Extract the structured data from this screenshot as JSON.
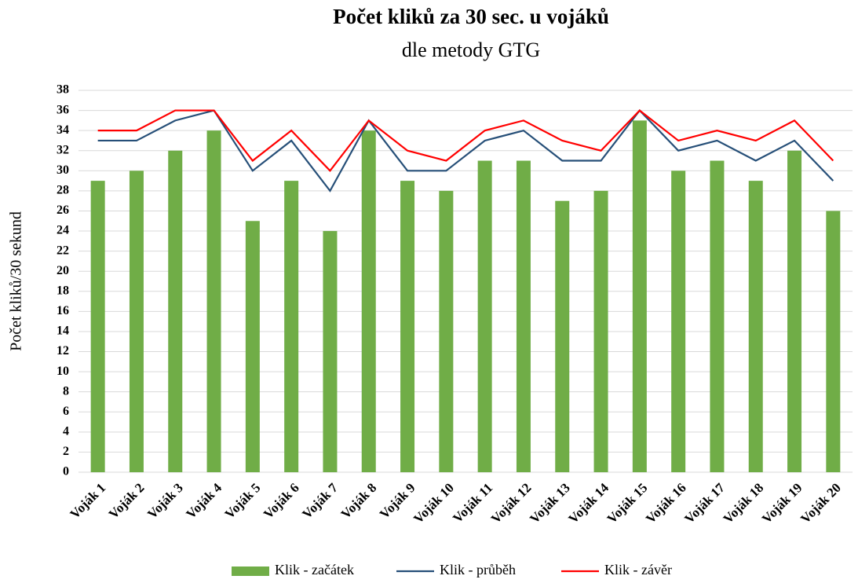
{
  "chart_data": {
    "type": "bar",
    "title": "Počet kliků za 30 sec. u vojáků",
    "subtitle": "dle metody GTG",
    "y_label": "Počet kliků/30 sekund",
    "categories": [
      "Voják 1",
      "Voják 2",
      "Voják 3",
      "Voják 4",
      "Voják 5",
      "Voják 6",
      "Voják 7",
      "Voják 8",
      "Voják 9",
      "Voják 10",
      "Voják 11",
      "Voják 12",
      "Voják 13",
      "Voják 14",
      "Voják 15",
      "Voják 16",
      "Voják 17",
      "Voják 18",
      "Voják 19",
      "Voják 20"
    ],
    "series": [
      {
        "name": "Klik - začátek",
        "type": "bar",
        "color": "#70ad47",
        "values": [
          29,
          30,
          32,
          34,
          25,
          29,
          24,
          34,
          29,
          28,
          31,
          31,
          27,
          28,
          35,
          30,
          31,
          29,
          32,
          26
        ]
      },
      {
        "name": "Klik - průběh",
        "type": "line",
        "color": "#264f78",
        "values": [
          33,
          33,
          35,
          36,
          30,
          33,
          28,
          35,
          30,
          30,
          33,
          34,
          31,
          31,
          36,
          32,
          33,
          31,
          33,
          29
        ]
      },
      {
        "name": "Klik - závěr",
        "type": "line",
        "color": "#ff0000",
        "values": [
          34,
          34,
          36,
          36,
          31,
          34,
          30,
          35,
          32,
          31,
          34,
          35,
          33,
          32,
          36,
          33,
          34,
          33,
          35,
          31
        ]
      }
    ],
    "ylim": [
      0,
      38
    ],
    "yticks": [
      0,
      2,
      4,
      6,
      8,
      10,
      12,
      14,
      16,
      18,
      20,
      22,
      24,
      26,
      28,
      30,
      32,
      34,
      36,
      38
    ],
    "grid": true,
    "legend": "bottom"
  }
}
